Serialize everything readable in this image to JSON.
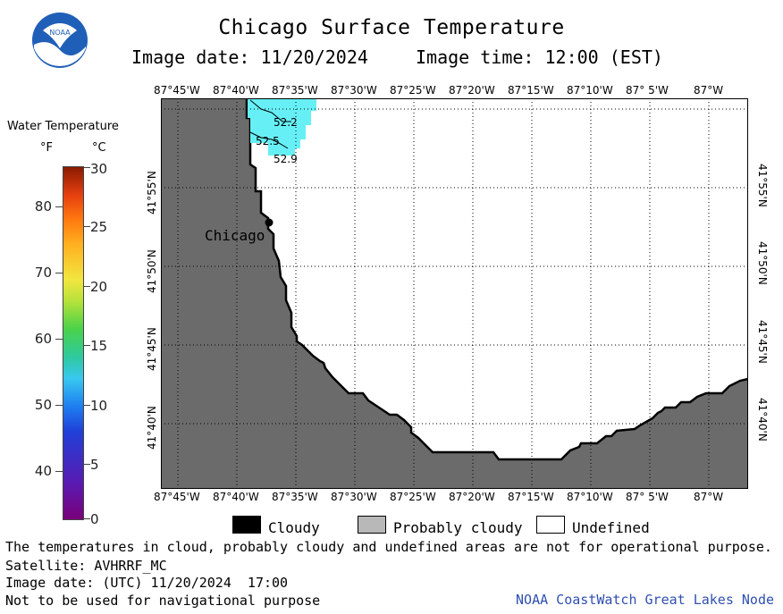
{
  "header": {
    "title": "Chicago Surface Temperature",
    "image_date": "Image date: 11/20/2024",
    "image_time": "Image time: 12:00 (EST)"
  },
  "logo": {
    "text": "NOAA"
  },
  "legend": {
    "title": "Water Temperature",
    "unit_f": "°F",
    "unit_c": "°C",
    "fahrenheit_labels": [
      "80",
      "70",
      "60",
      "50",
      "40"
    ],
    "celsius_labels": [
      "30",
      "25",
      "20",
      "15",
      "10",
      "5",
      "0"
    ]
  },
  "map": {
    "lon_labels": [
      "87°45'W",
      "87°40'W",
      "87°35'W",
      "87°30'W",
      "87°25'W",
      "87°20'W",
      "87°15'W",
      "87°10'W",
      "87° 5'W",
      "87°W"
    ],
    "lat_labels": [
      "41°55'N",
      "41°50'N",
      "41°45'N",
      "41°40'N"
    ],
    "city": "Chicago",
    "temp_labels": [
      "52.2",
      "52.5",
      "52.9"
    ],
    "colors": {
      "land": "#6b6b6b",
      "water_warm": "#66f0f6",
      "grid": "#000000"
    }
  },
  "key": {
    "cloudy": "Cloudy",
    "probably_cloudy": "Probably cloudy",
    "undefined": "Undefined"
  },
  "footer": {
    "disclaimer": "The temperatures in cloud, probably cloudy and undefined areas are not for operational purpose.",
    "satellite": "Satellite: AVHRRF_MC",
    "utc_date": "Image date: (UTC) 11/20/2024  17:00",
    "nav_warning": "Not to be used for navigational purpose",
    "node": "NOAA CoastWatch Great Lakes Node"
  }
}
